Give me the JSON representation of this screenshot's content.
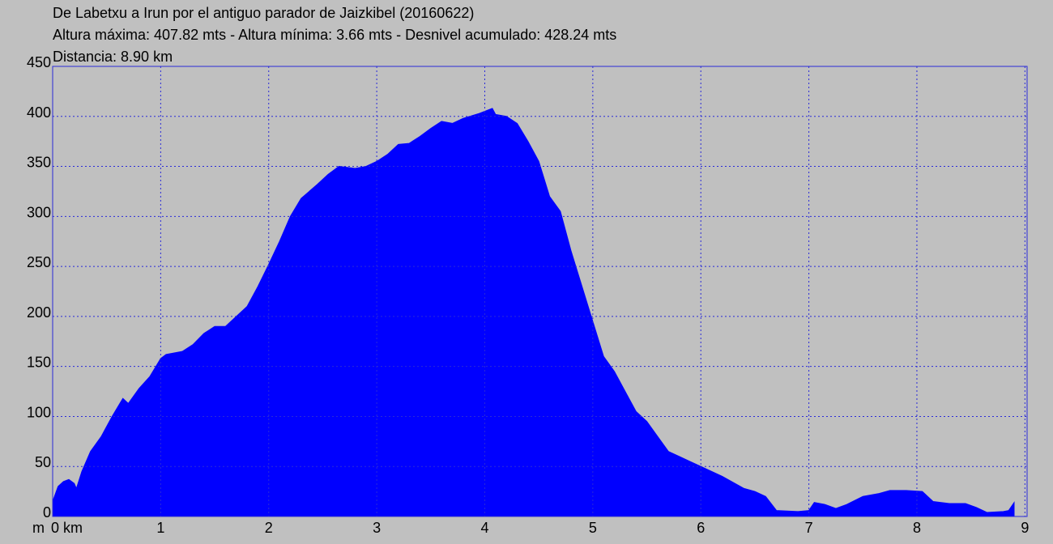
{
  "chart_data": {
    "type": "area",
    "title": "De Labetxu a Irun por el antiguo parador de Jaizkibel (20160622)",
    "subtitle": [
      "Altura máxima: 407.82 mts - Altura mínima: 3.66 mts - Desnivel acumulado: 428.24 mts",
      "Distancia: 8.90 km"
    ],
    "y_label": "m",
    "color": "#0000ff",
    "grid": true,
    "x": [
      0,
      0.05,
      0.1,
      0.15,
      0.2,
      0.22,
      0.27,
      0.35,
      0.45,
      0.55,
      0.65,
      0.7,
      0.8,
      0.9,
      1.0,
      1.05,
      1.2,
      1.3,
      1.4,
      1.5,
      1.6,
      1.7,
      1.8,
      1.9,
      2.0,
      2.1,
      2.2,
      2.3,
      2.45,
      2.55,
      2.65,
      2.8,
      2.9,
      3.0,
      3.1,
      3.2,
      3.3,
      3.4,
      3.5,
      3.6,
      3.7,
      3.8,
      3.95,
      4.07,
      4.1,
      4.2,
      4.3,
      4.4,
      4.5,
      4.6,
      4.7,
      4.8,
      4.9,
      5.0,
      5.1,
      5.2,
      5.3,
      5.4,
      5.5,
      5.6,
      5.7,
      5.8,
      5.9,
      6.0,
      6.2,
      6.4,
      6.5,
      6.6,
      6.7,
      6.9,
      7.0,
      7.05,
      7.15,
      7.25,
      7.35,
      7.5,
      7.65,
      7.75,
      7.9,
      8.05,
      8.15,
      8.3,
      8.45,
      8.55,
      8.65,
      8.8,
      8.85,
      8.9
    ],
    "y": [
      15,
      30,
      35,
      37,
      33,
      28,
      45,
      65,
      80,
      100,
      118,
      113,
      128,
      140,
      158,
      162,
      165,
      172,
      183,
      190,
      190,
      200,
      210,
      230,
      252,
      275,
      300,
      318,
      332,
      342,
      350,
      348,
      350,
      355,
      362,
      372,
      373,
      380,
      388,
      395,
      393,
      398,
      403,
      408,
      402,
      400,
      393,
      375,
      355,
      320,
      305,
      265,
      230,
      195,
      160,
      145,
      125,
      105,
      95,
      80,
      65,
      60,
      55,
      50,
      40,
      28,
      25,
      20,
      6,
      5,
      6,
      14,
      12,
      8,
      12,
      20,
      23,
      26,
      26,
      25,
      15,
      13,
      13,
      9,
      4,
      5,
      6,
      14
    ],
    "xlim": [
      0,
      9.02
    ],
    "ylim": [
      0,
      450
    ],
    "xticks": [
      {
        "value": 0,
        "label": "0 km"
      },
      1,
      2,
      3,
      4,
      5,
      6,
      7,
      8,
      9
    ],
    "yticks": [
      0,
      50,
      100,
      150,
      200,
      250,
      300,
      350,
      400,
      450
    ]
  }
}
